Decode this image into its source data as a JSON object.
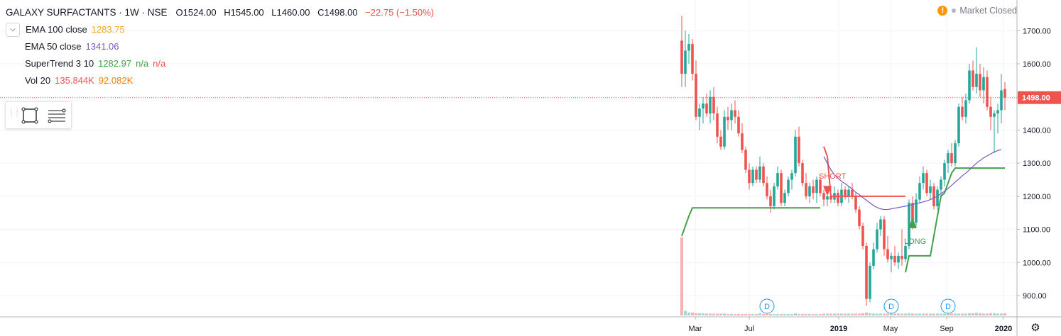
{
  "header": {
    "symbol_title": "GALAXY SURFACTANTS · 1W · NSE",
    "open": "O1524.00",
    "high": "H1545.00",
    "low": "L1460.00",
    "close": "C1498.00",
    "change": "−22.75 (−1.50%)",
    "market_status": "Market Closed",
    "warning_glyph": "!"
  },
  "indicators": {
    "ema100": {
      "label": "EMA 100 close",
      "value": "1283.75",
      "color": "#f5a623"
    },
    "ema50": {
      "label": "EMA 50 close",
      "value": "1341.06",
      "color": "#7e57c2"
    },
    "supertrend": {
      "label": "SuperTrend 3 10",
      "value": "1282.97",
      "na1": "n/a",
      "na2": "n/a",
      "color": "#43a047"
    },
    "vol": {
      "label": "Vol 20",
      "value1": "135.844K",
      "value2": "92.082K",
      "color1": "#ef5350",
      "color2": "#f57c00"
    }
  },
  "toolbar": {
    "rect_tool_icon": "rectangle-icon",
    "lines_tool_icon": "lines-icon",
    "grip_icon": "drag-grip-icon"
  },
  "chart_data": {
    "type": "candlestick",
    "price_axis": {
      "ticks": [
        "1700.00",
        "1600.00",
        "1500.00",
        "1400.00",
        "1300.00",
        "1200.00",
        "1100.00",
        "1000.00",
        "900.00"
      ],
      "range": [
        840,
        1750
      ]
    },
    "last_price_label": "1498.00",
    "time_axis": {
      "labels": [
        "Mar",
        "Jul",
        "2019",
        "May",
        "Sep",
        "2020"
      ]
    },
    "grid": true,
    "colors": {
      "up": "#26a69a",
      "down": "#ef5350",
      "supertrend": "#43a047",
      "ema50": "#7e57c2",
      "short": "#ef5350",
      "long": "#43a047",
      "dividend": "#2196f3",
      "volume_up": "#a5d6d1",
      "volume_down": "#f6b3b0"
    },
    "candles": [
      {
        "o": 1670,
        "h": 1745,
        "l": 1530,
        "c": 1570
      },
      {
        "o": 1570,
        "h": 1700,
        "l": 1530,
        "c": 1640
      },
      {
        "o": 1640,
        "h": 1690,
        "l": 1600,
        "c": 1660
      },
      {
        "o": 1660,
        "h": 1675,
        "l": 1550,
        "c": 1570
      },
      {
        "o": 1570,
        "h": 1610,
        "l": 1430,
        "c": 1440
      },
      {
        "o": 1440,
        "h": 1480,
        "l": 1400,
        "c": 1465
      },
      {
        "o": 1465,
        "h": 1500,
        "l": 1420,
        "c": 1480
      },
      {
        "o": 1480,
        "h": 1510,
        "l": 1440,
        "c": 1450
      },
      {
        "o": 1450,
        "h": 1520,
        "l": 1420,
        "c": 1500
      },
      {
        "o": 1500,
        "h": 1530,
        "l": 1430,
        "c": 1450
      },
      {
        "o": 1450,
        "h": 1470,
        "l": 1360,
        "c": 1380
      },
      {
        "o": 1380,
        "h": 1400,
        "l": 1340,
        "c": 1350
      },
      {
        "o": 1350,
        "h": 1460,
        "l": 1340,
        "c": 1440
      },
      {
        "o": 1440,
        "h": 1470,
        "l": 1400,
        "c": 1430
      },
      {
        "o": 1430,
        "h": 1480,
        "l": 1400,
        "c": 1460
      },
      {
        "o": 1460,
        "h": 1490,
        "l": 1420,
        "c": 1440
      },
      {
        "o": 1440,
        "h": 1460,
        "l": 1380,
        "c": 1390
      },
      {
        "o": 1390,
        "h": 1420,
        "l": 1330,
        "c": 1340
      },
      {
        "o": 1340,
        "h": 1350,
        "l": 1270,
        "c": 1280
      },
      {
        "o": 1280,
        "h": 1300,
        "l": 1220,
        "c": 1240
      },
      {
        "o": 1240,
        "h": 1290,
        "l": 1230,
        "c": 1280
      },
      {
        "o": 1280,
        "h": 1290,
        "l": 1240,
        "c": 1250
      },
      {
        "o": 1250,
        "h": 1320,
        "l": 1240,
        "c": 1290
      },
      {
        "o": 1290,
        "h": 1300,
        "l": 1230,
        "c": 1240
      },
      {
        "o": 1240,
        "h": 1260,
        "l": 1190,
        "c": 1200
      },
      {
        "o": 1200,
        "h": 1220,
        "l": 1150,
        "c": 1170
      },
      {
        "o": 1170,
        "h": 1240,
        "l": 1160,
        "c": 1230
      },
      {
        "o": 1230,
        "h": 1290,
        "l": 1220,
        "c": 1270
      },
      {
        "o": 1270,
        "h": 1280,
        "l": 1170,
        "c": 1180
      },
      {
        "o": 1180,
        "h": 1220,
        "l": 1170,
        "c": 1210
      },
      {
        "o": 1210,
        "h": 1260,
        "l": 1200,
        "c": 1250
      },
      {
        "o": 1250,
        "h": 1280,
        "l": 1220,
        "c": 1270
      },
      {
        "o": 1270,
        "h": 1400,
        "l": 1260,
        "c": 1380
      },
      {
        "o": 1380,
        "h": 1410,
        "l": 1290,
        "c": 1300
      },
      {
        "o": 1300,
        "h": 1310,
        "l": 1230,
        "c": 1240
      },
      {
        "o": 1240,
        "h": 1270,
        "l": 1190,
        "c": 1200
      },
      {
        "o": 1200,
        "h": 1240,
        "l": 1180,
        "c": 1230
      },
      {
        "o": 1230,
        "h": 1250,
        "l": 1190,
        "c": 1210
      },
      {
        "o": 1210,
        "h": 1260,
        "l": 1180,
        "c": 1250
      },
      {
        "o": 1250,
        "h": 1260,
        "l": 1200,
        "c": 1210
      },
      {
        "o": 1210,
        "h": 1220,
        "l": 1170,
        "c": 1190
      },
      {
        "o": 1190,
        "h": 1220,
        "l": 1170,
        "c": 1200
      },
      {
        "o": 1200,
        "h": 1230,
        "l": 1180,
        "c": 1190
      },
      {
        "o": 1190,
        "h": 1230,
        "l": 1180,
        "c": 1210
      },
      {
        "o": 1210,
        "h": 1220,
        "l": 1170,
        "c": 1180
      },
      {
        "o": 1180,
        "h": 1240,
        "l": 1170,
        "c": 1220
      },
      {
        "o": 1220,
        "h": 1230,
        "l": 1190,
        "c": 1200
      },
      {
        "o": 1200,
        "h": 1230,
        "l": 1180,
        "c": 1220
      },
      {
        "o": 1220,
        "h": 1240,
        "l": 1190,
        "c": 1200
      },
      {
        "o": 1200,
        "h": 1210,
        "l": 1150,
        "c": 1160
      },
      {
        "o": 1160,
        "h": 1170,
        "l": 1100,
        "c": 1110
      },
      {
        "o": 1110,
        "h": 1120,
        "l": 1040,
        "c": 1050
      },
      {
        "o": 1050,
        "h": 1060,
        "l": 870,
        "c": 890
      },
      {
        "o": 890,
        "h": 1000,
        "l": 880,
        "c": 990
      },
      {
        "o": 990,
        "h": 1060,
        "l": 980,
        "c": 1040
      },
      {
        "o": 1040,
        "h": 1120,
        "l": 1030,
        "c": 1100
      },
      {
        "o": 1100,
        "h": 1140,
        "l": 1080,
        "c": 1130
      },
      {
        "o": 1130,
        "h": 1140,
        "l": 1020,
        "c": 1040
      },
      {
        "o": 1040,
        "h": 1080,
        "l": 1000,
        "c": 1010
      },
      {
        "o": 1010,
        "h": 1030,
        "l": 970,
        "c": 1020
      },
      {
        "o": 1020,
        "h": 1050,
        "l": 990,
        "c": 1000
      },
      {
        "o": 1000,
        "h": 1030,
        "l": 980,
        "c": 1020
      },
      {
        "o": 1020,
        "h": 1100,
        "l": 990,
        "c": 1010
      },
      {
        "o": 1010,
        "h": 1060,
        "l": 1000,
        "c": 1050
      },
      {
        "o": 1050,
        "h": 1190,
        "l": 1040,
        "c": 1180
      },
      {
        "o": 1180,
        "h": 1200,
        "l": 1100,
        "c": 1120
      },
      {
        "o": 1120,
        "h": 1210,
        "l": 1110,
        "c": 1190
      },
      {
        "o": 1190,
        "h": 1260,
        "l": 1180,
        "c": 1240
      },
      {
        "o": 1240,
        "h": 1290,
        "l": 1220,
        "c": 1270
      },
      {
        "o": 1270,
        "h": 1280,
        "l": 1200,
        "c": 1210
      },
      {
        "o": 1210,
        "h": 1250,
        "l": 1190,
        "c": 1230
      },
      {
        "o": 1230,
        "h": 1240,
        "l": 1160,
        "c": 1170
      },
      {
        "o": 1170,
        "h": 1230,
        "l": 1160,
        "c": 1220
      },
      {
        "o": 1220,
        "h": 1260,
        "l": 1200,
        "c": 1250
      },
      {
        "o": 1250,
        "h": 1310,
        "l": 1230,
        "c": 1300
      },
      {
        "o": 1300,
        "h": 1340,
        "l": 1270,
        "c": 1330
      },
      {
        "o": 1330,
        "h": 1360,
        "l": 1290,
        "c": 1300
      },
      {
        "o": 1300,
        "h": 1370,
        "l": 1290,
        "c": 1360
      },
      {
        "o": 1360,
        "h": 1480,
        "l": 1350,
        "c": 1470
      },
      {
        "o": 1470,
        "h": 1500,
        "l": 1430,
        "c": 1440
      },
      {
        "o": 1440,
        "h": 1510,
        "l": 1420,
        "c": 1490
      },
      {
        "o": 1490,
        "h": 1600,
        "l": 1480,
        "c": 1580
      },
      {
        "o": 1580,
        "h": 1610,
        "l": 1520,
        "c": 1530
      },
      {
        "o": 1530,
        "h": 1650,
        "l": 1510,
        "c": 1570
      },
      {
        "o": 1570,
        "h": 1600,
        "l": 1500,
        "c": 1520
      },
      {
        "o": 1520,
        "h": 1590,
        "l": 1480,
        "c": 1560
      },
      {
        "o": 1560,
        "h": 1580,
        "l": 1460,
        "c": 1470
      },
      {
        "o": 1470,
        "h": 1500,
        "l": 1400,
        "c": 1440
      },
      {
        "o": 1440,
        "h": 1460,
        "l": 1330,
        "c": 1450
      },
      {
        "o": 1450,
        "h": 1480,
        "l": 1390,
        "c": 1460
      },
      {
        "o": 1460,
        "h": 1570,
        "l": 1420,
        "c": 1520
      },
      {
        "o": 1524,
        "h": 1545,
        "l": 1460,
        "c": 1498
      }
    ],
    "supertrend": [
      {
        "from": 0,
        "to": 39,
        "side": "long",
        "values": [
          1080,
          1110,
          1140,
          1165,
          1165,
          1165,
          1165,
          1165,
          1165,
          1165,
          1165,
          1165,
          1165,
          1165,
          1165,
          1165,
          1165,
          1165,
          1165,
          1165,
          1165,
          1165,
          1165,
          1165,
          1165,
          1165,
          1165,
          1165,
          1165,
          1165,
          1165,
          1165,
          1165,
          1165,
          1165,
          1165,
          1165,
          1165,
          1165,
          1165
        ]
      },
      {
        "from": 40,
        "to": 63,
        "side": "short",
        "values": [
          1350,
          1320,
          1200,
          1200,
          1200,
          1200,
          1200,
          1200,
          1200,
          1200,
          1200,
          1200,
          1200,
          1200,
          1200,
          1200,
          1200,
          1200,
          1200,
          1200,
          1200,
          1200,
          1200,
          1200
        ]
      },
      {
        "from": 63,
        "to": 91,
        "side": "long",
        "values": [
          970,
          1020,
          1020,
          1020,
          1020,
          1020,
          1020,
          1020,
          1080,
          1140,
          1200,
          1210,
          1240,
          1270,
          1285,
          1285,
          1285,
          1285,
          1285,
          1285,
          1285,
          1285,
          1285,
          1285,
          1285,
          1285,
          1285,
          1285,
          1285
        ]
      }
    ],
    "ema50": [
      {
        "from": 40,
        "values": [
          1320,
          1300,
          1280,
          1265,
          1255,
          1245,
          1238,
          1230,
          1222,
          1212,
          1205,
          1196,
          1188,
          1180,
          1172,
          1166,
          1162,
          1160,
          1160,
          1162,
          1164,
          1166,
          1168,
          1170,
          1172,
          1175,
          1178,
          1180,
          1183,
          1186,
          1190,
          1195,
          1200,
          1208,
          1215,
          1224,
          1233,
          1243,
          1252,
          1262,
          1270,
          1280,
          1290,
          1300,
          1308,
          1316,
          1322,
          1328,
          1334,
          1338,
          1341
        ]
      }
    ],
    "signals": [
      {
        "label": "SHORT",
        "at": 41,
        "value": 1210
      },
      {
        "label": "LONG",
        "at": 65,
        "value": 1125
      }
    ],
    "dividends": [
      {
        "at": 24,
        "label": "D"
      },
      {
        "at": 59,
        "label": "D"
      },
      {
        "at": 75,
        "label": "D"
      }
    ],
    "volume": [
      1060,
      60,
      40,
      40,
      30,
      30,
      30,
      25,
      25,
      25,
      25,
      25,
      25,
      20,
      20,
      20,
      20,
      20,
      20,
      20,
      20,
      20,
      30,
      20,
      20,
      20,
      20,
      20,
      20,
      20,
      20,
      20,
      30,
      20,
      20,
      20,
      20,
      20,
      20,
      20,
      25,
      25,
      25,
      25,
      25,
      25,
      25,
      25,
      25,
      25,
      25,
      30,
      40,
      30,
      25,
      25,
      25,
      25,
      25,
      25,
      25,
      25,
      25,
      25,
      30,
      25,
      25,
      25,
      25,
      25,
      25,
      25,
      25,
      25,
      25,
      25,
      25,
      25,
      25,
      25,
      25,
      30,
      30,
      35,
      30,
      25,
      25,
      30,
      30,
      25,
      25,
      30
    ]
  }
}
